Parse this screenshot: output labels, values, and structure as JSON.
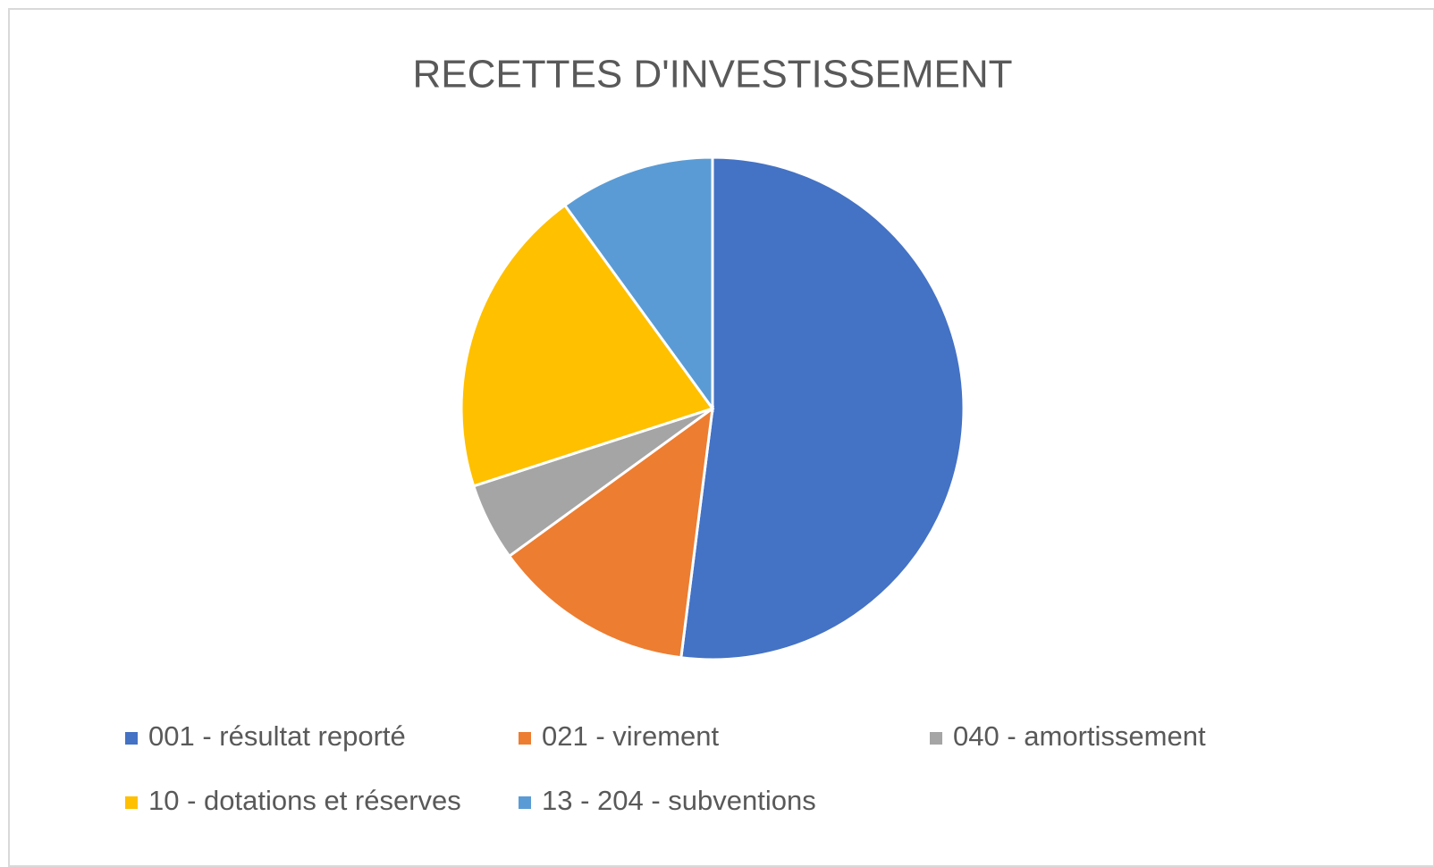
{
  "chart_data": {
    "type": "pie",
    "title": "RECETTES D'INVESTISSEMENT",
    "categories": [
      "001 - résultat reporté",
      "021 - virement",
      "040 - amortissement",
      "10 - dotations et réserves",
      "13 - 204 - subventions"
    ],
    "values": [
      52,
      13,
      5,
      20,
      10
    ],
    "colors": [
      "#4472c4",
      "#ed7d31",
      "#a5a5a5",
      "#ffc000",
      "#5b9bd5"
    ],
    "legend": "bottom"
  }
}
